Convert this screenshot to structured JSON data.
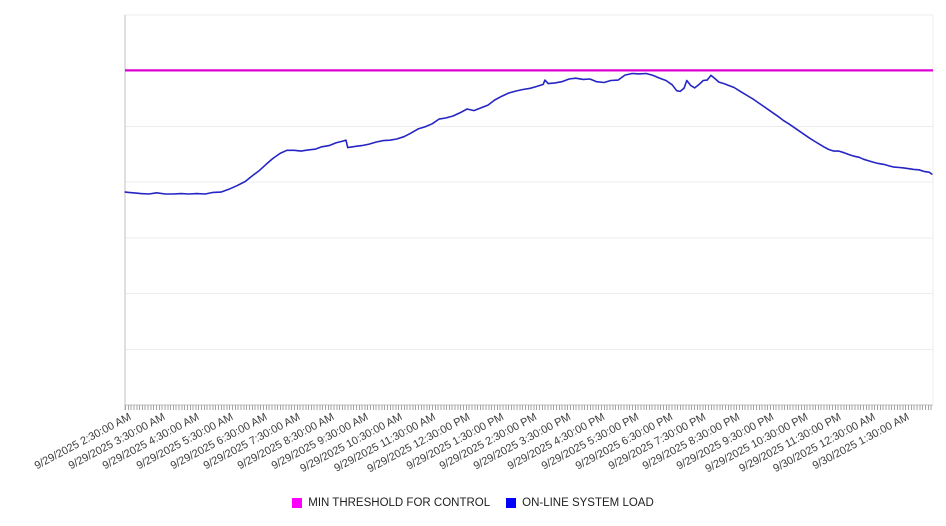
{
  "page": {
    "background": "#ffffff"
  },
  "chart_data": {
    "type": "line",
    "title": "",
    "legend_position": "bottom-center",
    "grid": "horizontal-only",
    "x_axis": {
      "minor_tick_interval_minutes": 5,
      "tick_labels": [
        "9/29/2025 2:30:00 AM",
        "9/29/2025 3:30:00 AM",
        "9/29/2025 4:30:00 AM",
        "9/29/2025 5:30:00 AM",
        "9/29/2025 6:30:00 AM",
        "9/29/2025 7:30:00 AM",
        "9/29/2025 8:30:00 AM",
        "9/29/2025 9:30:00 AM",
        "9/29/2025 10:30:00 AM",
        "9/29/2025 11:30:00 AM",
        "9/29/2025 12:30:00 PM",
        "9/29/2025 1:30:00 PM",
        "9/29/2025 2:30:00 PM",
        "9/29/2025 3:30:00 PM",
        "9/29/2025 4:30:00 PM",
        "9/29/2025 5:30:00 PM",
        "9/29/2025 6:30:00 PM",
        "9/29/2025 7:30:00 PM",
        "9/29/2025 8:30:00 PM",
        "9/29/2025 9:30:00 PM",
        "9/29/2025 10:30:00 PM",
        "9/29/2025 11:30:00 PM",
        "9/30/2025 12:30:00 AM",
        "9/30/2025 1:30:00 AM"
      ]
    },
    "y_axis": {
      "labels_visible": false,
      "gridline_count": 8,
      "range_pct": [
        0,
        100
      ]
    },
    "threshold_line": {
      "name": "MIN THRESHOLD FOR CONTROL",
      "color": "#dd00d4",
      "value_pct": 85.8
    },
    "series": [
      {
        "name": "ON-LINE SYSTEM LOAD",
        "color": "#2525c4",
        "x_unit": "minutes since 9/29/2025 2:30:00 AM",
        "y_unit": "relative load, % of plot height (no y-axis labels shown)",
        "points": [
          [
            -5,
            54.6
          ],
          [
            9,
            54.4
          ],
          [
            23,
            54.2
          ],
          [
            37,
            54.1
          ],
          [
            51,
            54.4
          ],
          [
            66,
            54.1
          ],
          [
            80,
            54.1
          ],
          [
            94,
            54.2
          ],
          [
            108,
            54.1
          ],
          [
            122,
            54.2
          ],
          [
            137,
            54.1
          ],
          [
            151,
            54.5
          ],
          [
            165,
            54.6
          ],
          [
            179,
            55.3
          ],
          [
            193,
            56.2
          ],
          [
            208,
            57.3
          ],
          [
            220,
            58.7
          ],
          [
            233,
            60.1
          ],
          [
            245,
            61.7
          ],
          [
            257,
            63.2
          ],
          [
            270,
            64.5
          ],
          [
            282,
            65.3
          ],
          [
            295,
            65.3
          ],
          [
            307,
            65.1
          ],
          [
            320,
            65.4
          ],
          [
            332,
            65.6
          ],
          [
            344,
            66.2
          ],
          [
            357,
            66.5
          ],
          [
            369,
            67.2
          ],
          [
            382,
            67.7
          ],
          [
            387,
            67.9
          ],
          [
            390,
            66.0
          ],
          [
            403,
            66.3
          ],
          [
            415,
            66.5
          ],
          [
            428,
            66.9
          ],
          [
            440,
            67.4
          ],
          [
            453,
            67.8
          ],
          [
            465,
            67.9
          ],
          [
            477,
            68.2
          ],
          [
            490,
            68.8
          ],
          [
            502,
            69.7
          ],
          [
            515,
            70.8
          ],
          [
            527,
            71.3
          ],
          [
            540,
            72.1
          ],
          [
            552,
            73.3
          ],
          [
            564,
            73.6
          ],
          [
            577,
            74.1
          ],
          [
            589,
            74.9
          ],
          [
            602,
            75.9
          ],
          [
            614,
            75.5
          ],
          [
            627,
            76.2
          ],
          [
            639,
            76.9
          ],
          [
            651,
            78.2
          ],
          [
            664,
            79.2
          ],
          [
            676,
            80.0
          ],
          [
            689,
            80.5
          ],
          [
            701,
            80.9
          ],
          [
            714,
            81.2
          ],
          [
            726,
            81.7
          ],
          [
            737,
            82.2
          ],
          [
            740,
            83.3
          ],
          [
            746,
            82.4
          ],
          [
            758,
            82.6
          ],
          [
            770,
            82.9
          ],
          [
            783,
            83.6
          ],
          [
            795,
            83.8
          ],
          [
            808,
            83.5
          ],
          [
            820,
            83.6
          ],
          [
            832,
            82.9
          ],
          [
            845,
            82.7
          ],
          [
            857,
            83.2
          ],
          [
            870,
            83.3
          ],
          [
            882,
            84.6
          ],
          [
            895,
            85.0
          ],
          [
            907,
            84.9
          ],
          [
            920,
            85.0
          ],
          [
            932,
            84.5
          ],
          [
            944,
            83.8
          ],
          [
            955,
            83.2
          ],
          [
            966,
            82.1
          ],
          [
            974,
            80.6
          ],
          [
            980,
            80.4
          ],
          [
            987,
            81.2
          ],
          [
            992,
            83.2
          ],
          [
            999,
            81.9
          ],
          [
            1006,
            81.3
          ],
          [
            1013,
            82.1
          ],
          [
            1021,
            83.2
          ],
          [
            1028,
            83.3
          ],
          [
            1035,
            84.5
          ],
          [
            1042,
            83.7
          ],
          [
            1049,
            82.8
          ],
          [
            1058,
            82.4
          ],
          [
            1067,
            81.9
          ],
          [
            1076,
            81.4
          ],
          [
            1085,
            80.6
          ],
          [
            1093,
            79.9
          ],
          [
            1102,
            79.1
          ],
          [
            1111,
            78.3
          ],
          [
            1120,
            77.4
          ],
          [
            1129,
            76.5
          ],
          [
            1138,
            75.6
          ],
          [
            1147,
            74.7
          ],
          [
            1156,
            73.8
          ],
          [
            1164,
            72.9
          ],
          [
            1173,
            72.1
          ],
          [
            1182,
            71.2
          ],
          [
            1191,
            70.3
          ],
          [
            1200,
            69.4
          ],
          [
            1209,
            68.5
          ],
          [
            1218,
            67.7
          ],
          [
            1227,
            66.9
          ],
          [
            1235,
            66.2
          ],
          [
            1244,
            65.5
          ],
          [
            1253,
            65.1
          ],
          [
            1262,
            65.1
          ],
          [
            1271,
            64.7
          ],
          [
            1280,
            64.2
          ],
          [
            1289,
            63.8
          ],
          [
            1298,
            63.5
          ],
          [
            1306,
            63.0
          ],
          [
            1315,
            62.6
          ],
          [
            1324,
            62.2
          ],
          [
            1333,
            61.9
          ],
          [
            1342,
            61.7
          ],
          [
            1351,
            61.3
          ],
          [
            1360,
            61.0
          ],
          [
            1369,
            60.9
          ],
          [
            1377,
            60.8
          ],
          [
            1386,
            60.6
          ],
          [
            1395,
            60.4
          ],
          [
            1404,
            60.3
          ],
          [
            1413,
            59.9
          ],
          [
            1422,
            59.7
          ],
          [
            1427,
            59.2
          ]
        ]
      }
    ]
  },
  "legend": {
    "items": [
      {
        "label": "MIN THRESHOLD FOR CONTROL",
        "color": "#ff00ff"
      },
      {
        "label": "ON-LINE SYSTEM LOAD",
        "color": "#0000ff"
      }
    ]
  }
}
